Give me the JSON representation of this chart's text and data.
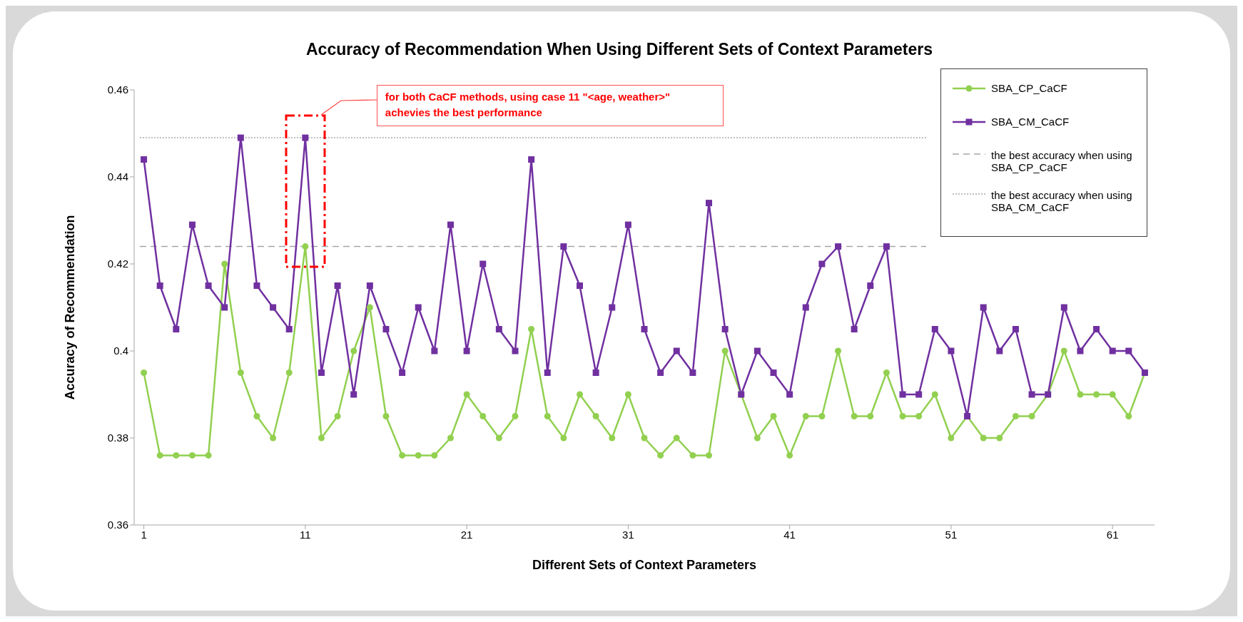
{
  "chart_data": {
    "type": "line",
    "title": "Accuracy of Recommendation When Using Different Sets of Context Parameters",
    "xlabel": "Different Sets of Context Parameters",
    "ylabel": "Accuracy of Recommendation",
    "x": [
      1,
      2,
      3,
      4,
      5,
      6,
      7,
      8,
      9,
      10,
      11,
      12,
      13,
      14,
      15,
      16,
      17,
      18,
      19,
      20,
      21,
      22,
      23,
      24,
      25,
      26,
      27,
      28,
      29,
      30,
      31,
      32,
      33,
      34,
      35,
      36,
      37,
      38,
      39,
      40,
      41,
      42,
      43,
      44,
      45,
      46,
      47,
      48,
      49,
      50,
      51,
      52,
      53,
      54,
      55,
      56,
      57,
      58,
      59,
      60,
      61,
      62,
      63
    ],
    "series": [
      {
        "name": "SBA_CP_CaCF",
        "color": "#92d050",
        "marker": "circle",
        "values": [
          0.395,
          0.376,
          0.376,
          0.376,
          0.376,
          0.42,
          0.395,
          0.385,
          0.38,
          0.395,
          0.424,
          0.38,
          0.385,
          0.4,
          0.41,
          0.385,
          0.376,
          0.376,
          0.376,
          0.38,
          0.39,
          0.385,
          0.38,
          0.385,
          0.405,
          0.385,
          0.38,
          0.39,
          0.385,
          0.38,
          0.39,
          0.38,
          0.376,
          0.38,
          0.376,
          0.376,
          0.4,
          0.39,
          0.38,
          0.385,
          0.376,
          0.385,
          0.385,
          0.4,
          0.385,
          0.385,
          0.395,
          0.385,
          0.385,
          0.39,
          0.38,
          0.385,
          0.38,
          0.38,
          0.385,
          0.385,
          0.39,
          0.4,
          0.39,
          0.39,
          0.39,
          0.385,
          0.395
        ]
      },
      {
        "name": "SBA_CM_CaCF",
        "color": "#7030a0",
        "marker": "square",
        "values": [
          0.444,
          0.415,
          0.405,
          0.429,
          0.415,
          0.41,
          0.449,
          0.415,
          0.41,
          0.405,
          0.449,
          0.395,
          0.415,
          0.39,
          0.415,
          0.405,
          0.395,
          0.41,
          0.4,
          0.429,
          0.4,
          0.42,
          0.405,
          0.4,
          0.444,
          0.395,
          0.424,
          0.415,
          0.395,
          0.41,
          0.429,
          0.405,
          0.395,
          0.4,
          0.395,
          0.434,
          0.405,
          0.39,
          0.4,
          0.395,
          0.39,
          0.41,
          0.42,
          0.424,
          0.405,
          0.415,
          0.424,
          0.39,
          0.39,
          0.405,
          0.4,
          0.385,
          0.41,
          0.4,
          0.405,
          0.39,
          0.39,
          0.41,
          0.4,
          0.405,
          0.4,
          0.4,
          0.395
        ]
      }
    ],
    "ref_lines": [
      {
        "axis": "y",
        "value": 0.424,
        "label": "the best accuracy when using SBA_CP_CaCF",
        "color": "#a6a6a6",
        "line_style": "dashed"
      },
      {
        "axis": "y",
        "value": 0.449,
        "label": "the best accuracy when using SBA_CM_CaCF",
        "color": "#a6a6a6",
        "line_style": "dotted"
      }
    ],
    "annotations": [
      "for both CaCF methods, using case 11 \"<age, weather>\" achevies the best performance"
    ],
    "xlim": [
      0.4,
      63.6
    ],
    "xticks": [
      1,
      11,
      21,
      31,
      41,
      51,
      61
    ],
    "ylim": [
      0.36,
      0.46
    ],
    "yticks": [
      0.36,
      0.38,
      0.4,
      0.42,
      0.44,
      0.46
    ],
    "grid": false,
    "legend": "top right",
    "line_style": "solid"
  }
}
